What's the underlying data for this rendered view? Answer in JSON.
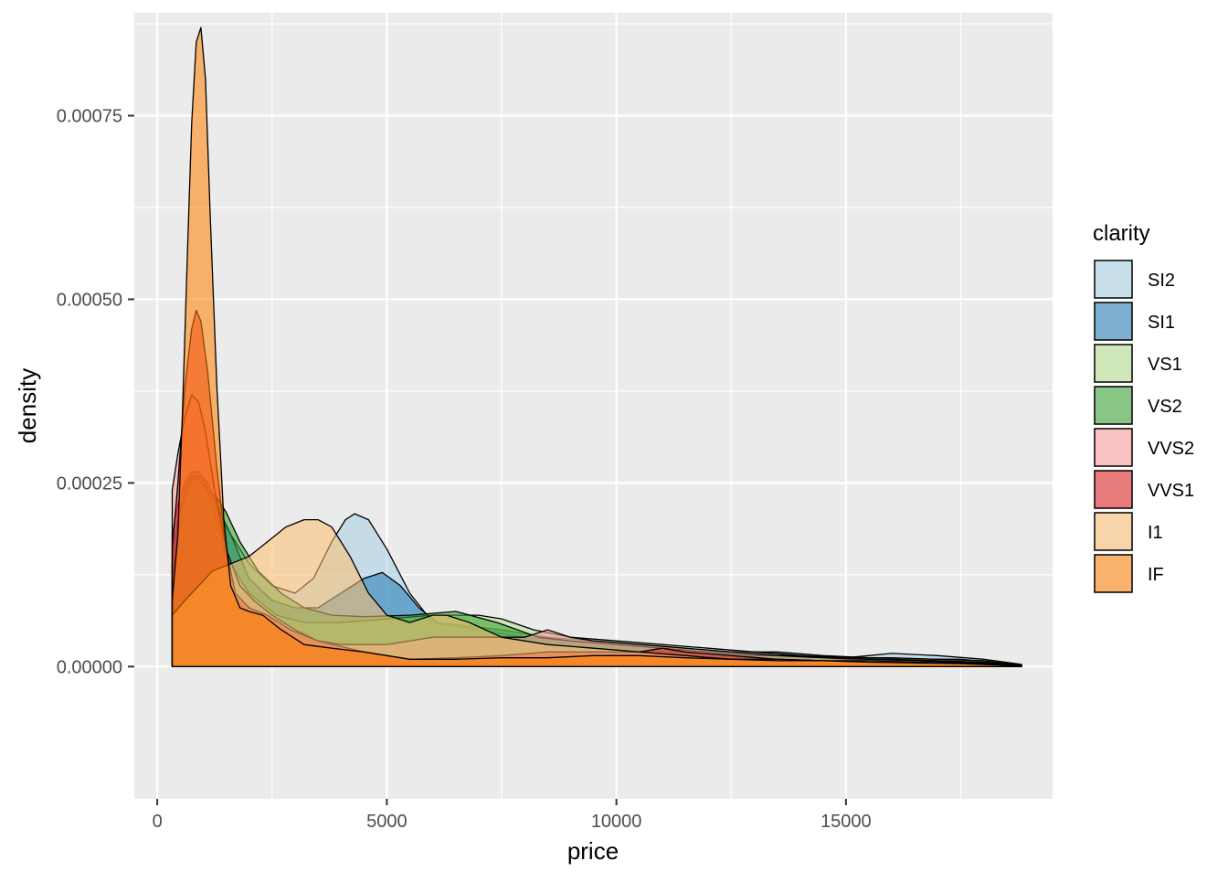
{
  "chart_data": {
    "type": "area",
    "xlabel": "price",
    "ylabel": "density",
    "xlim": [
      -500,
      19500
    ],
    "ylim": [
      -0.00018,
      0.00089
    ],
    "x_ticks": [
      {
        "value": 0,
        "label": "0"
      },
      {
        "value": 5000,
        "label": "5000"
      },
      {
        "value": 10000,
        "label": "10000"
      },
      {
        "value": 15000,
        "label": "15000"
      }
    ],
    "y_ticks": [
      {
        "value": 0,
        "label": "0.00000"
      },
      {
        "value": 0.00025,
        "label": "0.00025"
      },
      {
        "value": 0.0005,
        "label": "0.00050"
      },
      {
        "value": 0.00075,
        "label": "0.00075"
      }
    ],
    "legend": {
      "title": "clarity",
      "position": "right"
    },
    "grid": true,
    "series": [
      {
        "name": "SI2",
        "color": "#A6CEE3",
        "points": [
          [
            326,
            0.00014
          ],
          [
            400,
            0.00018
          ],
          [
            550,
            0.00022
          ],
          [
            700,
            0.00025
          ],
          [
            850,
            0.00026
          ],
          [
            1000,
            0.00025
          ],
          [
            1200,
            0.00023
          ],
          [
            1500,
            0.00019
          ],
          [
            2000,
            0.00014
          ],
          [
            2500,
            0.00011
          ],
          [
            3000,
            0.0001
          ],
          [
            3400,
            0.00012
          ],
          [
            3800,
            0.00017
          ],
          [
            4100,
            0.0002
          ],
          [
            4300,
            0.000208
          ],
          [
            4600,
            0.0002
          ],
          [
            5000,
            0.00016
          ],
          [
            5500,
            0.0001
          ],
          [
            6000,
            6e-05
          ],
          [
            6500,
            5.5e-05
          ],
          [
            7000,
            5e-05
          ],
          [
            7500,
            4.5e-05
          ],
          [
            8000,
            4e-05
          ],
          [
            9000,
            3.5e-05
          ],
          [
            10000,
            3e-05
          ],
          [
            11000,
            2.5e-05
          ],
          [
            12000,
            2e-05
          ],
          [
            13000,
            2e-05
          ],
          [
            14000,
            1.5e-05
          ],
          [
            15000,
            1.2e-05
          ],
          [
            16000,
            1.8e-05
          ],
          [
            17000,
            1.5e-05
          ],
          [
            18000,
            1e-05
          ],
          [
            18823,
            3e-06
          ]
        ]
      },
      {
        "name": "SI1",
        "color": "#1F78B4",
        "points": [
          [
            326,
            0.00018
          ],
          [
            450,
            0.00022
          ],
          [
            600,
            0.00025
          ],
          [
            750,
            0.000265
          ],
          [
            900,
            0.000265
          ],
          [
            1100,
            0.00025
          ],
          [
            1300,
            0.00022
          ],
          [
            1600,
            0.00018
          ],
          [
            2000,
            0.00012
          ],
          [
            2500,
            9e-05
          ],
          [
            3000,
            8e-05
          ],
          [
            3500,
            8e-05
          ],
          [
            4000,
            0.0001
          ],
          [
            4500,
            0.00012
          ],
          [
            4900,
            0.000128
          ],
          [
            5300,
            0.00011
          ],
          [
            5700,
            8e-05
          ],
          [
            6100,
            6e-05
          ],
          [
            6800,
            5.5e-05
          ],
          [
            7500,
            5e-05
          ],
          [
            8500,
            4e-05
          ],
          [
            9500,
            3.5e-05
          ],
          [
            10500,
            3e-05
          ],
          [
            11500,
            2.5e-05
          ],
          [
            12500,
            2e-05
          ],
          [
            13500,
            2e-05
          ],
          [
            14500,
            1.5e-05
          ],
          [
            15500,
            1.2e-05
          ],
          [
            16500,
            1e-05
          ],
          [
            17500,
            1e-05
          ],
          [
            18823,
            2e-06
          ]
        ]
      },
      {
        "name": "VS1",
        "color": "#B2DF8A",
        "points": [
          [
            326,
            0.00012
          ],
          [
            450,
            0.00018
          ],
          [
            600,
            0.00023
          ],
          [
            750,
            0.000255
          ],
          [
            900,
            0.00026
          ],
          [
            1050,
            0.00025
          ],
          [
            1250,
            0.00021
          ],
          [
            1500,
            0.00015
          ],
          [
            2000,
            0.0001
          ],
          [
            2600,
            7e-05
          ],
          [
            3200,
            6e-05
          ],
          [
            4000,
            6e-05
          ],
          [
            5000,
            6.5e-05
          ],
          [
            6000,
            7e-05
          ],
          [
            6500,
            7e-05
          ],
          [
            7000,
            7e-05
          ],
          [
            7500,
            6.5e-05
          ],
          [
            8200,
            5e-05
          ],
          [
            9000,
            4e-05
          ],
          [
            10000,
            3.5e-05
          ],
          [
            11000,
            3e-05
          ],
          [
            12000,
            2.5e-05
          ],
          [
            13000,
            2e-05
          ],
          [
            14000,
            1.5e-05
          ],
          [
            15000,
            1.2e-05
          ],
          [
            16000,
            1.2e-05
          ],
          [
            17000,
            1e-05
          ],
          [
            18000,
            8e-06
          ],
          [
            18823,
            2e-06
          ]
        ]
      },
      {
        "name": "VS2",
        "color": "#33A02C",
        "points": [
          [
            326,
            0.00014
          ],
          [
            450,
            0.0002
          ],
          [
            600,
            0.00024
          ],
          [
            750,
            0.00026
          ],
          [
            900,
            0.000255
          ],
          [
            1100,
            0.00024
          ],
          [
            1300,
            0.00023
          ],
          [
            1500,
            0.00021
          ],
          [
            1800,
            0.00017
          ],
          [
            2200,
            0.00013
          ],
          [
            2700,
            0.0001
          ],
          [
            3200,
            8e-05
          ],
          [
            3800,
            7e-05
          ],
          [
            4500,
            6.8e-05
          ],
          [
            5500,
            7e-05
          ],
          [
            6500,
            7.5e-05
          ],
          [
            7400,
            6e-05
          ],
          [
            8300,
            4e-05
          ],
          [
            9000,
            3.5e-05
          ],
          [
            10000,
            3e-05
          ],
          [
            11000,
            2.5e-05
          ],
          [
            12000,
            2e-05
          ],
          [
            13000,
            1.5e-05
          ],
          [
            14000,
            1.5e-05
          ],
          [
            15000,
            1e-05
          ],
          [
            16000,
            1e-05
          ],
          [
            17000,
            8e-06
          ],
          [
            18000,
            6e-06
          ],
          [
            18823,
            2e-06
          ]
        ]
      },
      {
        "name": "VVS2",
        "color": "#FB9A99",
        "points": [
          [
            326,
            0.00024
          ],
          [
            450,
            0.00029
          ],
          [
            600,
            0.00034
          ],
          [
            750,
            0.00037
          ],
          [
            900,
            0.00036
          ],
          [
            1050,
            0.00032
          ],
          [
            1250,
            0.00024
          ],
          [
            1500,
            0.00016
          ],
          [
            1800,
            0.00011
          ],
          [
            2100,
            9e-05
          ],
          [
            2500,
            7e-05
          ],
          [
            3000,
            5e-05
          ],
          [
            3500,
            3.5e-05
          ],
          [
            4000,
            3e-05
          ],
          [
            5000,
            3e-05
          ],
          [
            6000,
            4e-05
          ],
          [
            7000,
            4e-05
          ],
          [
            8000,
            4e-05
          ],
          [
            8500,
            5e-05
          ],
          [
            9000,
            4e-05
          ],
          [
            9500,
            3.5e-05
          ],
          [
            10500,
            3e-05
          ],
          [
            11500,
            2.5e-05
          ],
          [
            12500,
            2e-05
          ],
          [
            13500,
            1.5e-05
          ],
          [
            14500,
            1.2e-05
          ],
          [
            15500,
            1e-05
          ],
          [
            16500,
            8e-06
          ],
          [
            17500,
            6e-06
          ],
          [
            18823,
            2e-06
          ]
        ]
      },
      {
        "name": "VVS1",
        "color": "#E31A1C",
        "points": [
          [
            326,
            0.00016
          ],
          [
            450,
            0.00025
          ],
          [
            600,
            0.00038
          ],
          [
            750,
            0.00046
          ],
          [
            850,
            0.000485
          ],
          [
            950,
            0.00047
          ],
          [
            1100,
            0.0004
          ],
          [
            1300,
            0.00027
          ],
          [
            1500,
            0.00016
          ],
          [
            1700,
            0.0001
          ],
          [
            2000,
            8e-05
          ],
          [
            2400,
            7e-05
          ],
          [
            2900,
            5e-05
          ],
          [
            3500,
            3.5e-05
          ],
          [
            4500,
            2e-05
          ],
          [
            5500,
            1e-05
          ],
          [
            6500,
            1.2e-05
          ],
          [
            7500,
            1.5e-05
          ],
          [
            8500,
            2e-05
          ],
          [
            9500,
            2e-05
          ],
          [
            10500,
            2e-05
          ],
          [
            11000,
            2.5e-05
          ],
          [
            11500,
            2e-05
          ],
          [
            12500,
            1.5e-05
          ],
          [
            13500,
            1e-05
          ],
          [
            14500,
            8e-06
          ],
          [
            15500,
            6e-06
          ],
          [
            16500,
            5e-06
          ],
          [
            17500,
            4e-06
          ],
          [
            18823,
            1e-06
          ]
        ]
      },
      {
        "name": "I1",
        "color": "#FDBF6F",
        "points": [
          [
            326,
            7e-05
          ],
          [
            600,
            9e-05
          ],
          [
            900,
            0.00011
          ],
          [
            1200,
            0.00013
          ],
          [
            1600,
            0.00014
          ],
          [
            2000,
            0.00015
          ],
          [
            2400,
            0.00017
          ],
          [
            2800,
            0.00019
          ],
          [
            3200,
            0.0002
          ],
          [
            3500,
            0.0002
          ],
          [
            3800,
            0.00019
          ],
          [
            4200,
            0.00015
          ],
          [
            4600,
            0.0001
          ],
          [
            5000,
            7e-05
          ],
          [
            5500,
            6e-05
          ],
          [
            6000,
            7e-05
          ],
          [
            6300,
            7e-05
          ],
          [
            6800,
            6e-05
          ],
          [
            7500,
            4e-05
          ],
          [
            8500,
            3e-05
          ],
          [
            9500,
            2.5e-05
          ],
          [
            10500,
            2e-05
          ],
          [
            11500,
            1.5e-05
          ],
          [
            12500,
            1e-05
          ],
          [
            13500,
            1e-05
          ],
          [
            14500,
            8e-06
          ],
          [
            15500,
            8e-06
          ],
          [
            16500,
            6e-06
          ],
          [
            17500,
            5e-06
          ],
          [
            18823,
            1e-06
          ]
        ]
      },
      {
        "name": "IF",
        "color": "#FF7F00",
        "points": [
          [
            326,
            9e-05
          ],
          [
            450,
            0.00018
          ],
          [
            550,
            0.00035
          ],
          [
            650,
            0.00055
          ],
          [
            750,
            0.00074
          ],
          [
            850,
            0.00085
          ],
          [
            950,
            0.00087
          ],
          [
            1050,
            0.0008
          ],
          [
            1150,
            0.00062
          ],
          [
            1300,
            0.00038
          ],
          [
            1450,
            0.0002
          ],
          [
            1600,
            0.00011
          ],
          [
            1800,
            8e-05
          ],
          [
            2000,
            7.5e-05
          ],
          [
            2300,
            7e-05
          ],
          [
            2700,
            5e-05
          ],
          [
            3200,
            3e-05
          ],
          [
            3800,
            2.5e-05
          ],
          [
            4500,
            2e-05
          ],
          [
            5500,
            1e-05
          ],
          [
            6500,
            1e-05
          ],
          [
            7500,
            1.2e-05
          ],
          [
            8500,
            1.2e-05
          ],
          [
            9500,
            1.5e-05
          ],
          [
            10500,
            1.5e-05
          ],
          [
            11500,
            1.2e-05
          ],
          [
            12500,
            1e-05
          ],
          [
            13500,
            8e-06
          ],
          [
            14500,
            8e-06
          ],
          [
            15500,
            6e-06
          ],
          [
            16500,
            5e-06
          ],
          [
            17500,
            4e-06
          ],
          [
            18823,
            1e-06
          ]
        ]
      }
    ]
  }
}
